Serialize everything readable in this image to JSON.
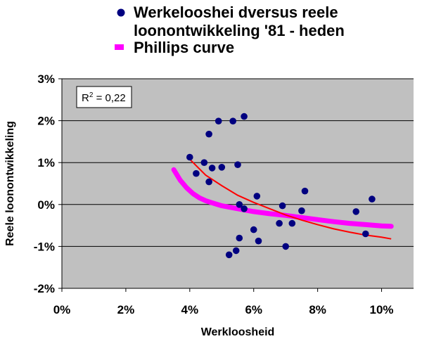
{
  "chart_data": {
    "type": "scatter",
    "title": "",
    "xlabel": "Werkloosheid",
    "ylabel": "Reele loonontwikkeling",
    "xlim": [
      0,
      0.11
    ],
    "ylim": [
      -0.02,
      0.03
    ],
    "x_ticks": [
      {
        "value": 0.0,
        "label": "0%"
      },
      {
        "value": 0.02,
        "label": "2%"
      },
      {
        "value": 0.04,
        "label": "4%"
      },
      {
        "value": 0.06,
        "label": "6%"
      },
      {
        "value": 0.08,
        "label": "8%"
      },
      {
        "value": 0.1,
        "label": "10%"
      }
    ],
    "y_ticks": [
      {
        "value": 0.03,
        "label": "3%"
      },
      {
        "value": 0.02,
        "label": "2%"
      },
      {
        "value": 0.01,
        "label": "1%"
      },
      {
        "value": 0.0,
        "label": "0%"
      },
      {
        "value": -0.01,
        "label": "-1%"
      },
      {
        "value": -0.02,
        "label": "-2%"
      }
    ],
    "grid": "horizontal",
    "background": "#C0C0C0",
    "legend_position": "top",
    "annotation": {
      "base": "R",
      "sup": "2",
      "rest": " = 0,22"
    },
    "series": [
      {
        "name": "Werkelooshei dversus reele loonontwikkeling '81 - heden",
        "legend_line1": "Werkelooshei dversus reele",
        "legend_line2": "loonontwikkeling '81 - heden",
        "marker": "circle",
        "color": "#000080",
        "points": [
          [
            0.04,
            0.0113
          ],
          [
            0.042,
            0.0074
          ],
          [
            0.0445,
            0.01
          ],
          [
            0.046,
            0.0054
          ],
          [
            0.046,
            0.0168
          ],
          [
            0.047,
            0.0087
          ],
          [
            0.049,
            0.0199
          ],
          [
            0.05,
            0.0089
          ],
          [
            0.0535,
            0.0199
          ],
          [
            0.055,
            0.0095
          ],
          [
            0.0555,
            0.0
          ],
          [
            0.057,
            0.021
          ],
          [
            0.057,
            -0.001
          ],
          [
            0.0523,
            -0.012
          ],
          [
            0.0545,
            -0.011
          ],
          [
            0.0555,
            -0.008
          ],
          [
            0.06,
            -0.006
          ],
          [
            0.061,
            0.002
          ],
          [
            0.0615,
            -0.0087
          ],
          [
            0.068,
            -0.0045
          ],
          [
            0.069,
            -0.0003
          ],
          [
            0.07,
            -0.01
          ],
          [
            0.072,
            -0.0045
          ],
          [
            0.075,
            -0.0015
          ],
          [
            0.076,
            0.0032
          ],
          [
            0.092,
            -0.0017
          ],
          [
            0.095,
            -0.007
          ],
          [
            0.097,
            0.0013
          ]
        ]
      },
      {
        "name": "Phillips curve",
        "legend_line1": "Phillips curve",
        "marker": "thick-line",
        "color": "#FF00FF",
        "points": [
          [
            0.035,
            0.0083
          ],
          [
            0.037,
            0.0058
          ],
          [
            0.039,
            0.004
          ],
          [
            0.041,
            0.0026
          ],
          [
            0.043,
            0.0016
          ],
          [
            0.045,
            0.0009
          ],
          [
            0.047,
            0.0004
          ],
          [
            0.05,
            -0.0003
          ],
          [
            0.055,
            -0.001
          ],
          [
            0.06,
            -0.0017
          ],
          [
            0.065,
            -0.0022
          ],
          [
            0.07,
            -0.0026
          ],
          [
            0.075,
            -0.0031
          ],
          [
            0.08,
            -0.0036
          ],
          [
            0.085,
            -0.0041
          ],
          [
            0.09,
            -0.0045
          ],
          [
            0.095,
            -0.0048
          ],
          [
            0.1,
            -0.0051
          ],
          [
            0.103,
            -0.0052
          ]
        ]
      },
      {
        "name": "trendline",
        "marker": "line",
        "color": "#FF0000",
        "points": [
          [
            0.04,
            0.0108
          ],
          [
            0.045,
            0.007
          ],
          [
            0.05,
            0.0045
          ],
          [
            0.055,
            0.0022
          ],
          [
            0.06,
            0.0005
          ],
          [
            0.065,
            -0.001
          ],
          [
            0.07,
            -0.0025
          ],
          [
            0.075,
            -0.0037
          ],
          [
            0.08,
            -0.0048
          ],
          [
            0.085,
            -0.0058
          ],
          [
            0.09,
            -0.0066
          ],
          [
            0.095,
            -0.0073
          ],
          [
            0.1,
            -0.0078
          ],
          [
            0.103,
            -0.0082
          ]
        ]
      }
    ]
  }
}
